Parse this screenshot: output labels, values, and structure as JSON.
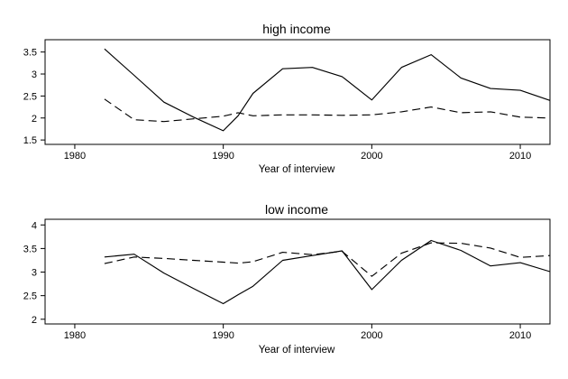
{
  "chart_data": [
    {
      "type": "line",
      "title": "high income",
      "xlabel": "Year of interview",
      "ylabel": "",
      "xlim": [
        1978,
        2012
      ],
      "ylim": [
        1.4,
        3.78
      ],
      "xticks": [
        1980,
        1990,
        2000,
        2010
      ],
      "yticks": [
        1.5,
        2,
        2.5,
        3,
        3.5
      ],
      "yticklabels": [
        "1.5",
        "2",
        "2.5",
        "3",
        "3.5"
      ],
      "grid": false,
      "series": [
        {
          "style": "solid",
          "x": [
            1982,
            1984,
            1986,
            1988,
            1990,
            1991,
            1992,
            1994,
            1996,
            1998,
            2000,
            2002,
            2004,
            2006,
            2008,
            2010,
            2012
          ],
          "y": [
            3.57,
            2.97,
            2.36,
            2.02,
            1.71,
            2.05,
            2.56,
            3.12,
            3.15,
            2.94,
            2.41,
            3.15,
            3.44,
            2.91,
            2.67,
            2.63,
            2.4
          ]
        },
        {
          "style": "dashed",
          "x": [
            1982,
            1984,
            1986,
            1988,
            1990,
            1991,
            1992,
            1994,
            1996,
            1998,
            2000,
            2002,
            2004,
            2006,
            2008,
            2010,
            2012
          ],
          "y": [
            2.43,
            1.96,
            1.92,
            1.98,
            2.04,
            2.12,
            2.05,
            2.07,
            2.07,
            2.06,
            2.07,
            2.14,
            2.25,
            2.12,
            2.14,
            2.02,
            2.0
          ]
        }
      ]
    },
    {
      "type": "line",
      "title": "low income",
      "xlabel": "Year of interview",
      "ylabel": "",
      "xlim": [
        1978,
        2012
      ],
      "ylim": [
        1.9,
        4.12
      ],
      "xticks": [
        1980,
        1990,
        2000,
        2010
      ],
      "yticks": [
        2,
        2.5,
        3,
        3.5,
        4
      ],
      "yticklabels": [
        "2",
        "2.5",
        "3",
        "3.5",
        "4"
      ],
      "grid": false,
      "series": [
        {
          "style": "solid",
          "x": [
            1982,
            1984,
            1986,
            1988,
            1990,
            1991,
            1992,
            1994,
            1996,
            1998,
            2000,
            2002,
            2004,
            2006,
            2008,
            2010,
            2012
          ],
          "y": [
            3.32,
            3.38,
            2.98,
            2.65,
            2.33,
            2.52,
            2.7,
            3.25,
            3.35,
            3.45,
            2.63,
            3.25,
            3.67,
            3.46,
            3.13,
            3.2,
            3.01
          ]
        },
        {
          "style": "dashed",
          "x": [
            1982,
            1984,
            1986,
            1988,
            1990,
            1991,
            1992,
            1994,
            1996,
            1998,
            2000,
            2002,
            2004,
            2006,
            2008,
            2010,
            2012
          ],
          "y": [
            3.18,
            3.32,
            3.29,
            3.25,
            3.21,
            3.19,
            3.22,
            3.42,
            3.37,
            3.44,
            2.91,
            3.4,
            3.62,
            3.61,
            3.51,
            3.31,
            3.35
          ]
        }
      ]
    }
  ]
}
